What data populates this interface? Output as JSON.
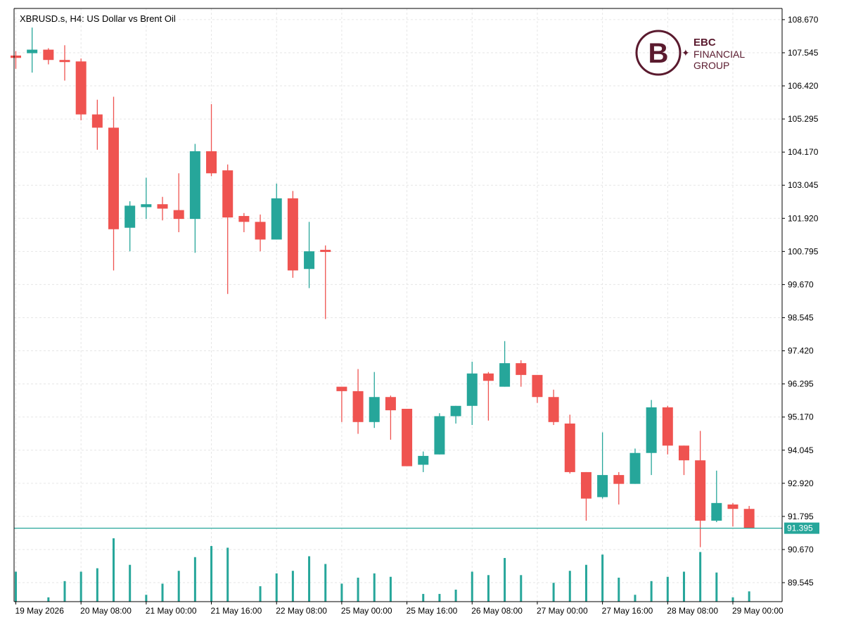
{
  "chart_data": {
    "type": "candlestick",
    "symbol_label": "XBRUSD.s, H4:  US Dollar vs Brent Oil",
    "y_ticks": [
      "108.670",
      "107.545",
      "106.420",
      "105.295",
      "104.170",
      "103.045",
      "101.920",
      "100.795",
      "99.670",
      "98.545",
      "97.420",
      "96.295",
      "95.170",
      "94.045",
      "92.920",
      "91.795",
      "90.670",
      "89.545"
    ],
    "x_ticks": [
      "19 May 2026",
      "20 May 08:00",
      "21 May 00:00",
      "21 May 16:00",
      "22 May 08:00",
      "25 May 00:00",
      "25 May 16:00",
      "26 May 08:00",
      "27 May 00:00",
      "27 May 16:00",
      "28 May 08:00",
      "29 May 00:00"
    ],
    "ylim": [
      88.9,
      109.05
    ],
    "current_price": 91.395,
    "current_price_label": "91.395",
    "colors": {
      "up": "#26a69a",
      "down": "#ef5350",
      "grid": "#e6e6e6",
      "axis": "#000000",
      "price_line": "#26a69a",
      "volume": "#26a69a"
    },
    "candles": [
      {
        "o": 107.45,
        "h": 107.6,
        "l": 107.0,
        "c": 107.37
      },
      {
        "o": 107.53,
        "h": 108.4,
        "l": 106.87,
        "c": 107.65
      },
      {
        "o": 107.65,
        "h": 107.7,
        "l": 107.15,
        "c": 107.3
      },
      {
        "o": 107.3,
        "h": 107.8,
        "l": 106.6,
        "c": 107.25
      },
      {
        "o": 107.25,
        "h": 107.35,
        "l": 105.25,
        "c": 105.45
      },
      {
        "o": 105.45,
        "h": 105.95,
        "l": 104.25,
        "c": 105.0
      },
      {
        "o": 105.0,
        "h": 106.05,
        "l": 100.15,
        "c": 101.55
      },
      {
        "o": 101.6,
        "h": 102.5,
        "l": 100.8,
        "c": 102.35
      },
      {
        "o": 102.3,
        "h": 103.3,
        "l": 101.9,
        "c": 102.4
      },
      {
        "o": 102.4,
        "h": 102.65,
        "l": 101.85,
        "c": 102.25
      },
      {
        "o": 102.2,
        "h": 103.45,
        "l": 101.45,
        "c": 101.9
      },
      {
        "o": 101.9,
        "h": 104.45,
        "l": 100.75,
        "c": 104.2
      },
      {
        "o": 104.2,
        "h": 105.8,
        "l": 103.35,
        "c": 103.45
      },
      {
        "o": 103.55,
        "h": 103.75,
        "l": 99.35,
        "c": 101.95
      },
      {
        "o": 102.0,
        "h": 102.1,
        "l": 101.45,
        "c": 101.8
      },
      {
        "o": 101.8,
        "h": 102.05,
        "l": 100.8,
        "c": 101.2
      },
      {
        "o": 101.2,
        "h": 103.1,
        "l": 101.2,
        "c": 102.6
      },
      {
        "o": 102.6,
        "h": 102.85,
        "l": 99.9,
        "c": 100.15
      },
      {
        "o": 100.2,
        "h": 101.8,
        "l": 99.55,
        "c": 100.8
      },
      {
        "o": 100.85,
        "h": 101.0,
        "l": 98.5,
        "c": 100.8
      },
      {
        "o": 96.2,
        "h": 96.2,
        "l": 95.0,
        "c": 96.05
      },
      {
        "o": 96.05,
        "h": 96.8,
        "l": 94.6,
        "c": 95.0
      },
      {
        "o": 95.0,
        "h": 96.7,
        "l": 94.8,
        "c": 95.85
      },
      {
        "o": 95.85,
        "h": 95.9,
        "l": 94.4,
        "c": 95.4
      },
      {
        "o": 95.45,
        "h": 95.45,
        "l": 93.5,
        "c": 93.5
      },
      {
        "o": 93.55,
        "h": 94.0,
        "l": 93.3,
        "c": 93.85
      },
      {
        "o": 93.9,
        "h": 95.3,
        "l": 93.9,
        "c": 95.2
      },
      {
        "o": 95.2,
        "h": 95.55,
        "l": 94.95,
        "c": 95.55
      },
      {
        "o": 95.55,
        "h": 97.05,
        "l": 94.9,
        "c": 96.65
      },
      {
        "o": 96.65,
        "h": 96.7,
        "l": 95.05,
        "c": 96.4
      },
      {
        "o": 96.2,
        "h": 97.75,
        "l": 96.2,
        "c": 97.0
      },
      {
        "o": 97.0,
        "h": 97.1,
        "l": 96.2,
        "c": 96.6
      },
      {
        "o": 96.6,
        "h": 96.6,
        "l": 95.65,
        "c": 95.85
      },
      {
        "o": 95.85,
        "h": 96.1,
        "l": 94.9,
        "c": 95.0
      },
      {
        "o": 94.95,
        "h": 95.25,
        "l": 93.25,
        "c": 93.3
      },
      {
        "o": 93.3,
        "h": 93.3,
        "l": 91.65,
        "c": 92.4
      },
      {
        "o": 92.45,
        "h": 94.65,
        "l": 92.4,
        "c": 93.2
      },
      {
        "o": 93.2,
        "h": 93.3,
        "l": 92.2,
        "c": 92.9
      },
      {
        "o": 92.9,
        "h": 94.1,
        "l": 92.9,
        "c": 93.95
      },
      {
        "o": 93.95,
        "h": 95.75,
        "l": 93.2,
        "c": 95.5
      },
      {
        "o": 95.5,
        "h": 95.55,
        "l": 93.9,
        "c": 94.2
      },
      {
        "o": 94.2,
        "h": 94.2,
        "l": 93.2,
        "c": 93.7
      },
      {
        "o": 93.7,
        "h": 94.7,
        "l": 90.75,
        "c": 91.65
      },
      {
        "o": 91.65,
        "h": 93.35,
        "l": 91.6,
        "c": 92.25
      },
      {
        "o": 92.2,
        "h": 92.25,
        "l": 91.45,
        "c": 92.05
      },
      {
        "o": 92.05,
        "h": 92.15,
        "l": 91.4,
        "c": 91.4
      }
    ],
    "volumes": [
      0.35,
      0.0,
      0.05,
      0.24,
      0.35,
      0.39,
      0.74,
      0.43,
      0.08,
      0.21,
      0.36,
      0.52,
      0.65,
      0.63,
      0.0,
      0.18,
      0.33,
      0.36,
      0.53,
      0.44,
      0.21,
      0.28,
      0.33,
      0.29,
      0.0,
      0.09,
      0.09,
      0.14,
      0.35,
      0.31,
      0.51,
      0.31,
      0.0,
      0.22,
      0.36,
      0.43,
      0.55,
      0.28,
      0.08,
      0.24,
      0.29,
      0.35,
      0.58,
      0.34,
      0.05,
      0.12
    ]
  },
  "logo": {
    "line1": "EBC",
    "line2": "FINANCIAL",
    "line3": "GROUP",
    "color": "#5a1a2e"
  }
}
